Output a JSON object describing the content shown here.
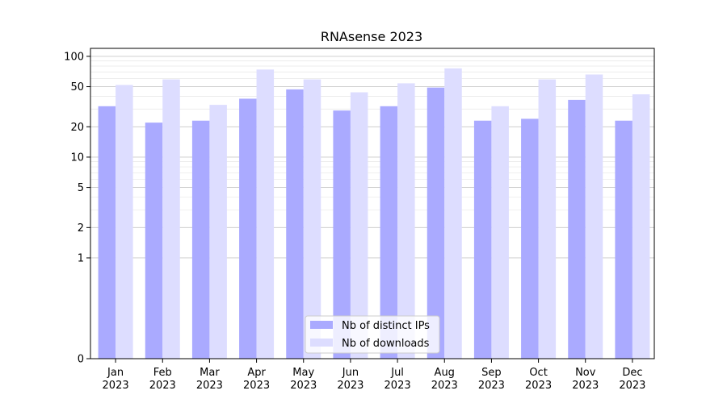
{
  "chart_data": {
    "type": "bar",
    "title": "RNAsense 2023",
    "xlabel": "",
    "ylabel": "",
    "yscale": "symlog",
    "ylim": [
      0,
      120
    ],
    "yticks": [
      0,
      1,
      2,
      5,
      10,
      20,
      50,
      100
    ],
    "categories": [
      "Jan\n2023",
      "Feb\n2023",
      "Mar\n2023",
      "Apr\n2023",
      "May\n2023",
      "Jun\n2023",
      "Jul\n2023",
      "Aug\n2023",
      "Sep\n2023",
      "Oct\n2023",
      "Nov\n2023",
      "Dec\n2023"
    ],
    "series": [
      {
        "name": "Nb of distinct IPs",
        "color": "#aaaaff",
        "values": [
          32,
          22,
          23,
          38,
          47,
          29,
          32,
          49,
          23,
          24,
          37,
          23
        ]
      },
      {
        "name": "Nb of downloads",
        "color": "#ddddff",
        "values": [
          52,
          59,
          33,
          74,
          59,
          44,
          54,
          76,
          32,
          59,
          66,
          42
        ]
      }
    ],
    "grid": true,
    "legend_position": "bottom-center"
  }
}
